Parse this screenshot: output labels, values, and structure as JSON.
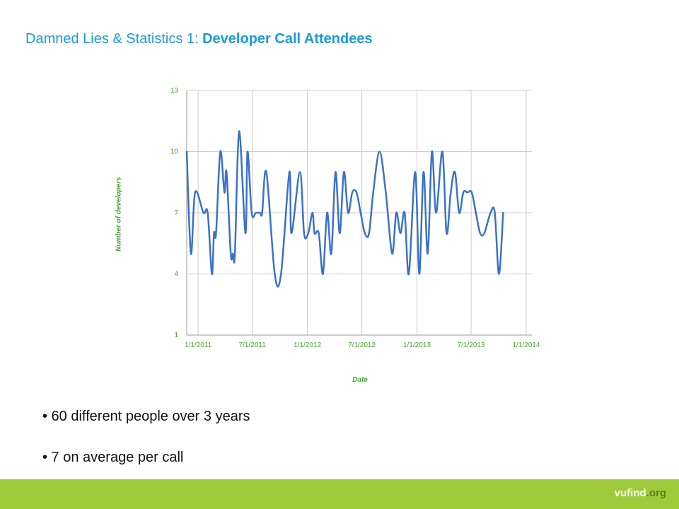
{
  "title": {
    "prefix": "Damned Lies & Statistics 1: ",
    "emphasis": "Developer Call Attendees"
  },
  "bullets": [
    "• 60 different people over 3 years",
    "• 7 on average per call"
  ],
  "footer": {
    "brand_main": "vufind",
    "brand_suffix": ".org"
  },
  "colors": {
    "title": "#1a9bd7",
    "line": "#3b72c9",
    "axis_text": "#4aa534",
    "grid": "#cccccc",
    "footer": "#9dcb3c"
  },
  "chart_data": {
    "type": "line",
    "title": "",
    "xlabel": "Date",
    "ylabel": "Number of developers",
    "ylim": [
      1,
      13
    ],
    "xlim": [
      "2010-11-24",
      "2014-01-20"
    ],
    "yticks": [
      "1",
      "4",
      "7",
      "10",
      "13"
    ],
    "xticks": [
      {
        "date": "2011-01-01",
        "label": "1/1/2011"
      },
      {
        "date": "2011-07-01",
        "label": "7/1/2011"
      },
      {
        "date": "2012-01-01",
        "label": "1/1/2012"
      },
      {
        "date": "2012-07-01",
        "label": "7/1/2012"
      },
      {
        "date": "2013-01-01",
        "label": "1/1/2013"
      },
      {
        "date": "2013-07-01",
        "label": "7/1/2013"
      },
      {
        "date": "2014-01-01",
        "label": "1/1/2014"
      }
    ],
    "grid": true,
    "smooth": true,
    "series": [
      {
        "values": [
          [
            "2010-11-24",
            10
          ],
          [
            "2010-12-08",
            5
          ],
          [
            "2010-12-22",
            8
          ],
          [
            "2011-01-19",
            7
          ],
          [
            "2011-02-02",
            7
          ],
          [
            "2011-02-16",
            4
          ],
          [
            "2011-02-23",
            6
          ],
          [
            "2011-03-02",
            6
          ],
          [
            "2011-03-16",
            10
          ],
          [
            "2011-03-30",
            8
          ],
          [
            "2011-04-06",
            9
          ],
          [
            "2011-04-20",
            5
          ],
          [
            "2011-04-27",
            5
          ],
          [
            "2011-05-04",
            5
          ],
          [
            "2011-05-18",
            11
          ],
          [
            "2011-06-08",
            6
          ],
          [
            "2011-06-15",
            10
          ],
          [
            "2011-06-29",
            7
          ],
          [
            "2011-07-13",
            7
          ],
          [
            "2011-07-27",
            7
          ],
          [
            "2011-08-03",
            7
          ],
          [
            "2011-08-17",
            9
          ],
          [
            "2011-09-14",
            4
          ],
          [
            "2011-10-05",
            4
          ],
          [
            "2011-11-02",
            9
          ],
          [
            "2011-11-09",
            6
          ],
          [
            "2011-12-07",
            9
          ],
          [
            "2011-12-21",
            6
          ],
          [
            "2012-01-04",
            6
          ],
          [
            "2012-01-18",
            7
          ],
          [
            "2012-01-25",
            6
          ],
          [
            "2012-02-08",
            6
          ],
          [
            "2012-02-22",
            4
          ],
          [
            "2012-03-07",
            7
          ],
          [
            "2012-03-21",
            5
          ],
          [
            "2012-04-04",
            9
          ],
          [
            "2012-04-18",
            6
          ],
          [
            "2012-05-02",
            9
          ],
          [
            "2012-05-16",
            7
          ],
          [
            "2012-05-30",
            8
          ],
          [
            "2012-06-13",
            8
          ],
          [
            "2012-06-27",
            7
          ],
          [
            "2012-07-11",
            6
          ],
          [
            "2012-07-25",
            6
          ],
          [
            "2012-08-08",
            8
          ],
          [
            "2012-08-29",
            10
          ],
          [
            "2012-09-19",
            8
          ],
          [
            "2012-10-10",
            5
          ],
          [
            "2012-10-24",
            7
          ],
          [
            "2012-11-07",
            6
          ],
          [
            "2012-11-21",
            7
          ],
          [
            "2012-12-05",
            4
          ],
          [
            "2012-12-26",
            9
          ],
          [
            "2013-01-09",
            4
          ],
          [
            "2013-01-23",
            9
          ],
          [
            "2013-02-06",
            5
          ],
          [
            "2013-02-20",
            10
          ],
          [
            "2013-03-06",
            7
          ],
          [
            "2013-03-27",
            10
          ],
          [
            "2013-04-10",
            6
          ],
          [
            "2013-04-24",
            8
          ],
          [
            "2013-05-08",
            9
          ],
          [
            "2013-05-22",
            7
          ],
          [
            "2013-06-05",
            8
          ],
          [
            "2013-06-19",
            8
          ],
          [
            "2013-07-03",
            8
          ],
          [
            "2013-07-17",
            7
          ],
          [
            "2013-07-31",
            6
          ],
          [
            "2013-08-14",
            6
          ],
          [
            "2013-09-04",
            7
          ],
          [
            "2013-09-18",
            7
          ],
          [
            "2013-10-02",
            4
          ],
          [
            "2013-10-16",
            7
          ]
        ]
      }
    ]
  }
}
